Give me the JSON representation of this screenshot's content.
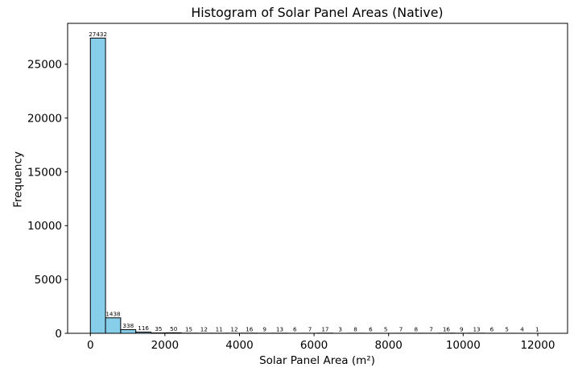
{
  "chart_data": {
    "type": "bar",
    "chart_kind": "histogram",
    "title": "Histogram of Solar Panel Areas (Native)",
    "xlabel": "Solar Panel Area (m²)",
    "ylabel": "Frequency",
    "bin_start": 0,
    "bin_width": 406.33,
    "values": [
      27432,
      1438,
      338,
      116,
      35,
      50,
      15,
      12,
      11,
      12,
      16,
      9,
      13,
      6,
      7,
      17,
      3,
      8,
      6,
      5,
      7,
      8,
      7,
      16,
      9,
      13,
      6,
      5,
      4,
      1
    ],
    "bar_labels_visible": true,
    "xticks": [
      0,
      2000,
      4000,
      6000,
      8000,
      10000,
      12000
    ],
    "yticks": [
      0,
      5000,
      10000,
      15000,
      20000,
      25000
    ],
    "xlim": [
      -610,
      12800
    ],
    "ylim": [
      0,
      28800
    ],
    "bar_color": "#87CEEB",
    "bar_edge_color": "#000000",
    "axis_color": "#000000",
    "background": "#FFFFFF",
    "grid": false,
    "legend": null
  }
}
